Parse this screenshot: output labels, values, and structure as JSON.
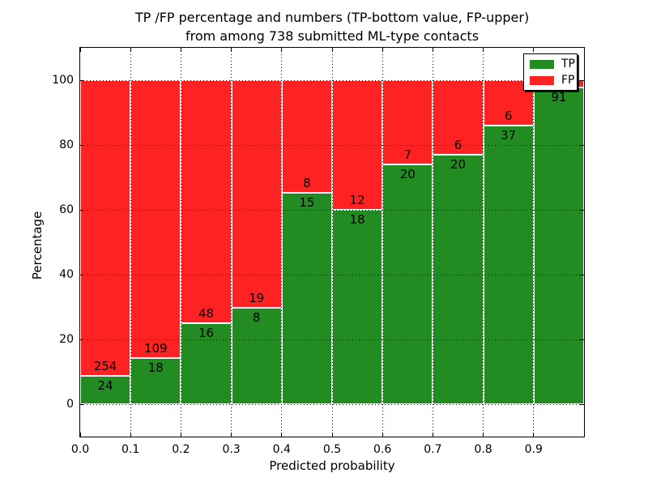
{
  "title": {
    "line1": "TP /FP percentage and numbers (TP-bottom value, FP-upper)",
    "line2": "from among 738 submitted ML-type contacts"
  },
  "axes": {
    "xlabel": "Predicted probability",
    "ylabel": "Percentage",
    "xtick_labels": [
      "0.0",
      "0.1",
      "0.2",
      "0.3",
      "0.4",
      "0.5",
      "0.6",
      "0.7",
      "0.8",
      "0.9"
    ],
    "xtick_values": [
      0.0,
      0.1,
      0.2,
      0.3,
      0.4,
      0.5,
      0.6,
      0.7,
      0.8,
      0.9
    ],
    "ytick_labels": [
      "0",
      "20",
      "40",
      "60",
      "80",
      "100"
    ],
    "ytick_values": [
      0,
      20,
      40,
      60,
      80,
      100
    ]
  },
  "legend": {
    "position": "upper right",
    "items": [
      {
        "label": "TP",
        "color": "#228b22"
      },
      {
        "label": "FP",
        "color": "#fe2222"
      }
    ]
  },
  "colors": {
    "tp": "#228b22",
    "fp": "#fe2222",
    "background": "#ffffff",
    "grid": "#000000",
    "bar_edge": "#ffffff"
  },
  "chart_data": {
    "type": "bar",
    "stacked": true,
    "normalized_to_percent": 100,
    "title": "TP /FP percentage and numbers (TP-bottom value, FP-upper) from among 738 submitted ML-type contacts",
    "xlabel": "Predicted probability",
    "ylabel": "Percentage",
    "xlim": [
      0.0,
      1.0
    ],
    "ylim": [
      -10,
      110
    ],
    "grid": true,
    "legend_position": "upper right",
    "bin_start": [
      0.0,
      0.1,
      0.2,
      0.3,
      0.4,
      0.5,
      0.6,
      0.7,
      0.8,
      0.9
    ],
    "bin_width": 0.1,
    "series": [
      {
        "name": "TP",
        "color": "#228b22",
        "counts": [
          24,
          18,
          16,
          8,
          15,
          18,
          20,
          20,
          37,
          91
        ]
      },
      {
        "name": "FP",
        "color": "#fe2222",
        "counts": [
          254,
          109,
          48,
          19,
          8,
          12,
          7,
          6,
          6,
          2
        ]
      }
    ],
    "tp_percent": [
      8.6,
      14.2,
      25.0,
      29.6,
      65.2,
      60.0,
      74.1,
      76.9,
      86.0,
      97.8
    ],
    "total_contacts": 738
  }
}
